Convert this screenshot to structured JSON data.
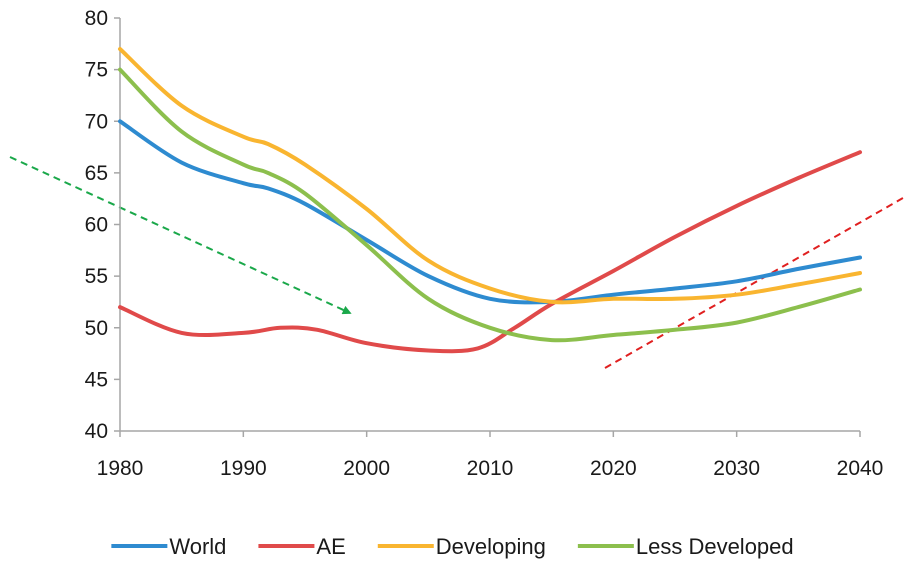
{
  "chart_data": {
    "type": "line",
    "title": "",
    "xlabel": "",
    "ylabel": "",
    "xlim": [
      1980,
      2040
    ],
    "ylim": [
      40,
      80
    ],
    "x_ticks": [
      "1980",
      "1990",
      "2000",
      "2010",
      "2020",
      "2030",
      "2040"
    ],
    "y_ticks": [
      "40",
      "45",
      "50",
      "55",
      "60",
      "65",
      "70",
      "75",
      "80"
    ],
    "grid": false,
    "legend_position": "bottom",
    "series": [
      {
        "name": "World",
        "color": "#2e8bd0",
        "points": [
          [
            1980,
            70
          ],
          [
            1985,
            66
          ],
          [
            1990,
            64
          ],
          [
            1992,
            63.5
          ],
          [
            1995,
            62
          ],
          [
            2000,
            58.5
          ],
          [
            2005,
            55
          ],
          [
            2010,
            52.8
          ],
          [
            2015,
            52.5
          ],
          [
            2020,
            53.2
          ],
          [
            2025,
            53.8
          ],
          [
            2030,
            54.5
          ],
          [
            2035,
            55.7
          ],
          [
            2040,
            56.8
          ]
        ]
      },
      {
        "name": "AE",
        "color": "#e04a4a",
        "points": [
          [
            1980,
            52
          ],
          [
            1985,
            49.5
          ],
          [
            1990,
            49.5
          ],
          [
            1993,
            50
          ],
          [
            1996,
            49.8
          ],
          [
            2000,
            48.5
          ],
          [
            2005,
            47.8
          ],
          [
            2009,
            48
          ],
          [
            2012,
            50
          ],
          [
            2015,
            52.3
          ],
          [
            2020,
            55.5
          ],
          [
            2025,
            58.8
          ],
          [
            2030,
            61.8
          ],
          [
            2035,
            64.5
          ],
          [
            2040,
            67
          ]
        ]
      },
      {
        "name": "Developing",
        "color": "#f9b530",
        "points": [
          [
            1980,
            77
          ],
          [
            1985,
            71.5
          ],
          [
            1990,
            68.5
          ],
          [
            1992,
            67.8
          ],
          [
            1995,
            65.8
          ],
          [
            2000,
            61.5
          ],
          [
            2005,
            56.5
          ],
          [
            2010,
            53.8
          ],
          [
            2015,
            52.5
          ],
          [
            2020,
            52.8
          ],
          [
            2025,
            52.8
          ],
          [
            2030,
            53.2
          ],
          [
            2035,
            54.2
          ],
          [
            2040,
            55.3
          ]
        ]
      },
      {
        "name": "Less Developed",
        "color": "#8cbf4d",
        "points": [
          [
            1980,
            75
          ],
          [
            1985,
            69
          ],
          [
            1990,
            65.8
          ],
          [
            1992,
            65
          ],
          [
            1995,
            63
          ],
          [
            2000,
            58
          ],
          [
            2005,
            52.8
          ],
          [
            2010,
            50
          ],
          [
            2015,
            48.8
          ],
          [
            2020,
            49.3
          ],
          [
            2025,
            49.8
          ],
          [
            2030,
            50.5
          ],
          [
            2035,
            52
          ],
          [
            2040,
            53.7
          ]
        ]
      }
    ],
    "annotations": [
      {
        "type": "dashed-arrow",
        "color": "#1aa84a"
      },
      {
        "type": "dashed-line",
        "color": "#e02020"
      }
    ]
  }
}
